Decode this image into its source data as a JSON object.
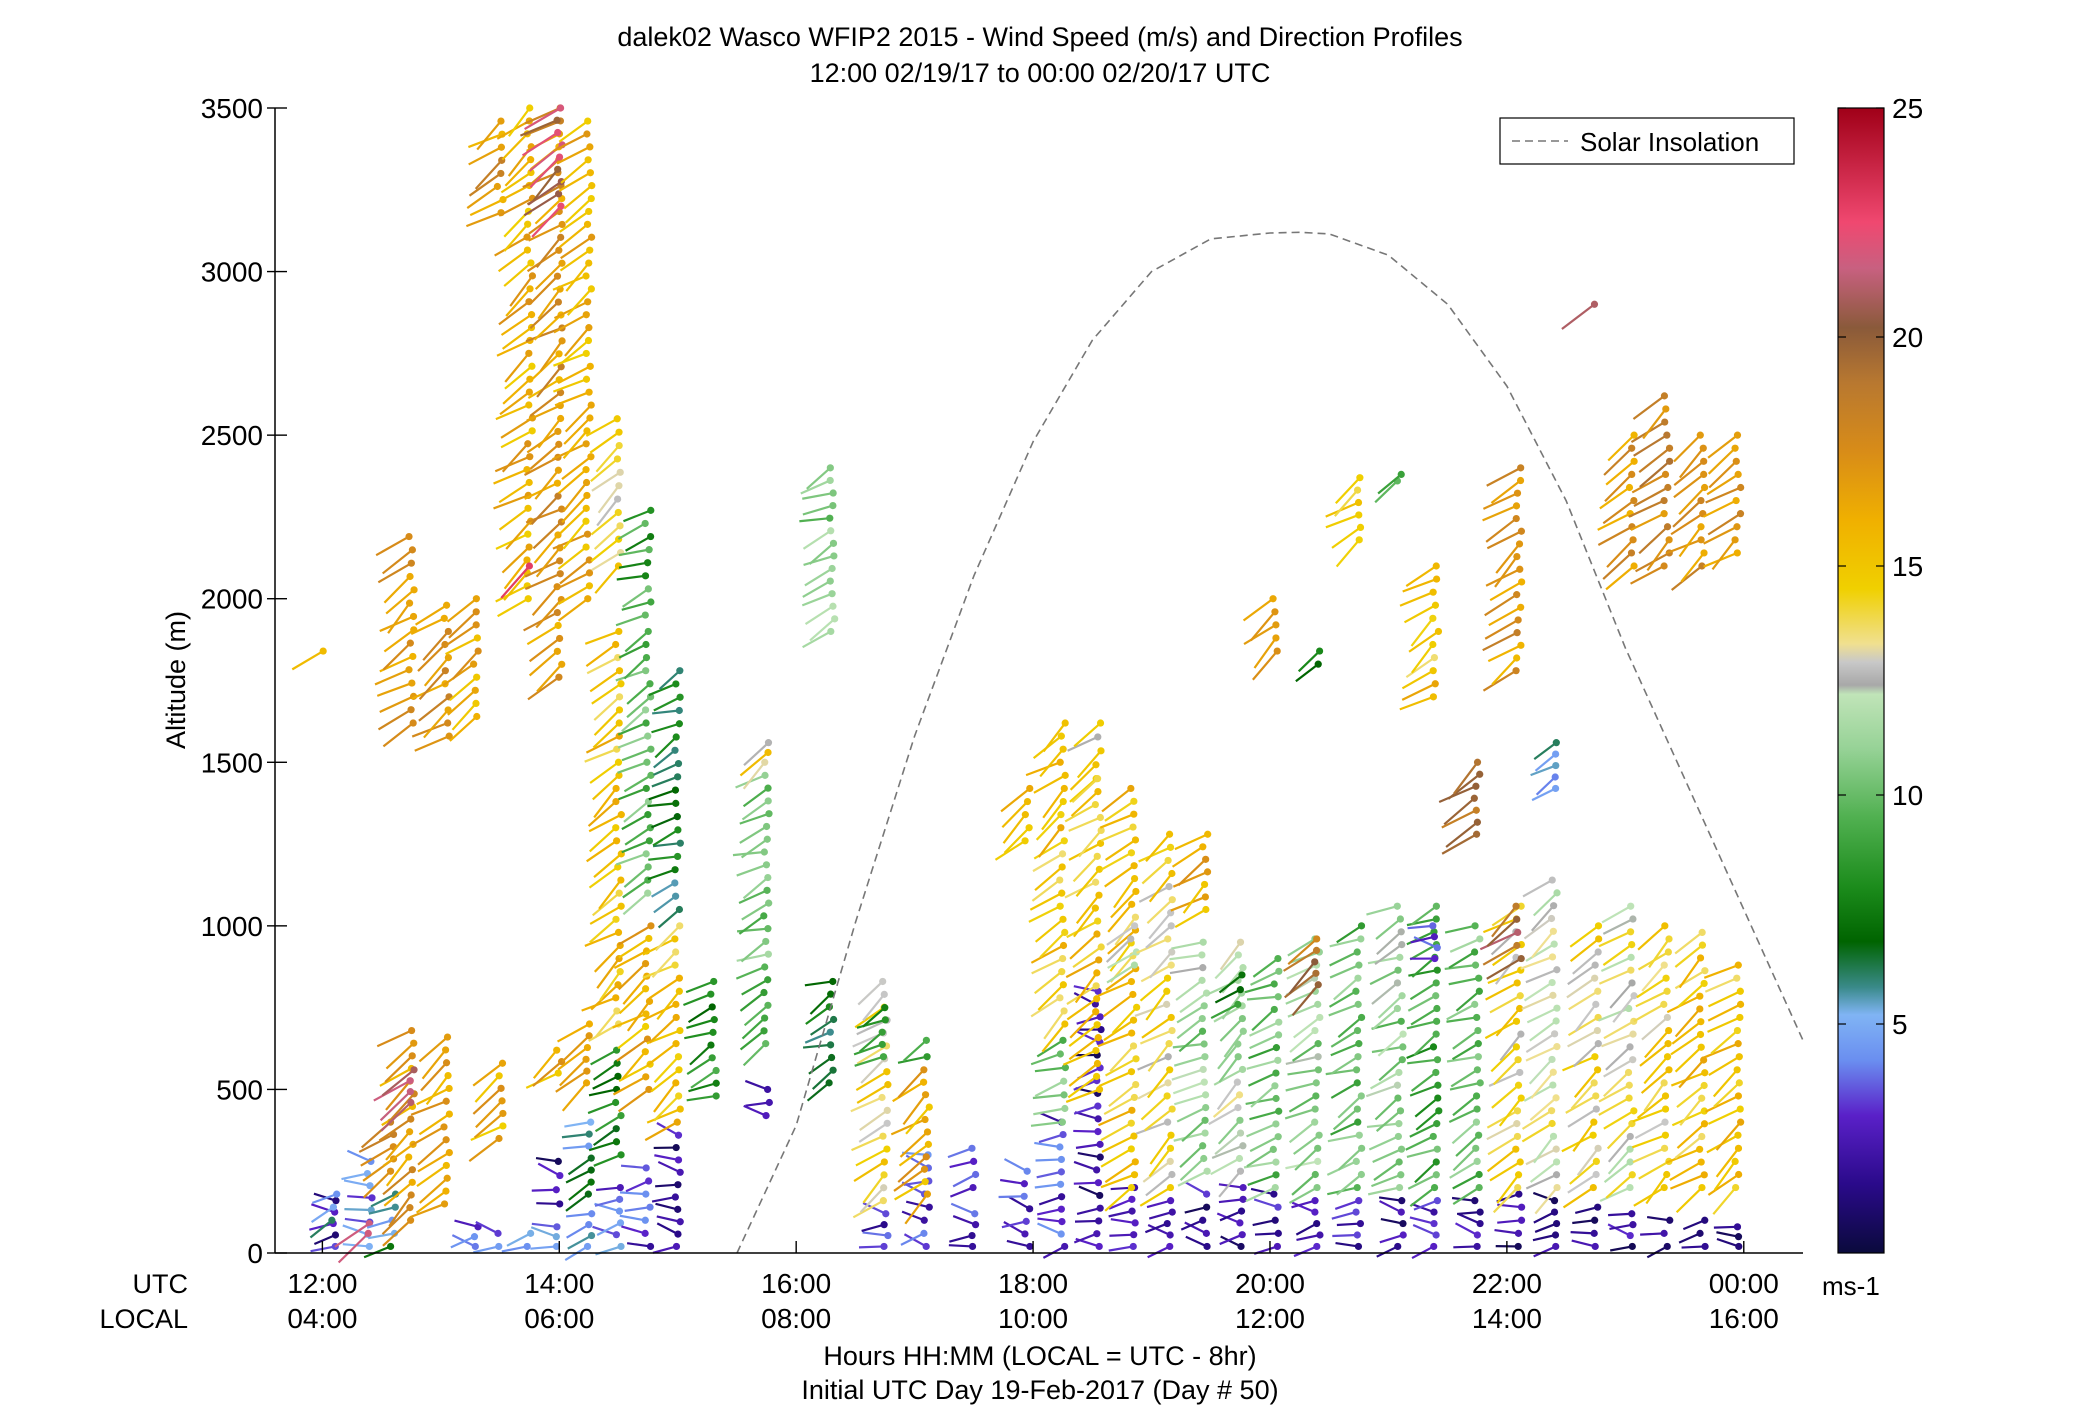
{
  "chart_data": {
    "type": "scatter",
    "title": "dalek02 Wasco WFIP2 2015 - Wind Speed (m/s) and Direction Profiles",
    "subtitle": "12:00 02/19/17 to 00:00 02/20/17  UTC",
    "ylabel": "Altitude (m)",
    "xlabel": "Hours HH:MM  (LOCAL = UTC - 8hr)",
    "xlabel2": "Initial UTC Day 19-Feb-2017 (Day # 50)",
    "row_label_utc": "UTC",
    "row_label_local": "LOCAL",
    "xlim_hours": [
      11.6,
      24.5
    ],
    "ylim": [
      0,
      3500
    ],
    "yticks": [
      0,
      500,
      1000,
      1500,
      2000,
      2500,
      3000,
      3500
    ],
    "xticks_hours": [
      12,
      14,
      16,
      18,
      20,
      22,
      24
    ],
    "xtick_labels_utc": [
      "12:00",
      "14:00",
      "16:00",
      "18:00",
      "20:00",
      "22:00",
      "00:00"
    ],
    "xtick_labels_local": [
      "04:00",
      "06:00",
      "08:00",
      "10:00",
      "12:00",
      "14:00",
      "16:00"
    ],
    "legend": {
      "label": "Solar Insolation",
      "position": "top-right",
      "style": "dashed gray line"
    },
    "colorbar": {
      "label": "ms-1",
      "range": [
        0,
        25
      ],
      "ticks": [
        5,
        10,
        15,
        20,
        25
      ],
      "stops": [
        {
          "v": 0,
          "c": "#0a0a3c"
        },
        {
          "v": 1.5,
          "c": "#2a0a8a"
        },
        {
          "v": 3,
          "c": "#5a20c8"
        },
        {
          "v": 4.2,
          "c": "#6a8ef0"
        },
        {
          "v": 5.2,
          "c": "#80b4f4"
        },
        {
          "v": 5.8,
          "c": "#3a8a8a"
        },
        {
          "v": 6.8,
          "c": "#006400"
        },
        {
          "v": 8,
          "c": "#1c8c1c"
        },
        {
          "v": 9.5,
          "c": "#50b050"
        },
        {
          "v": 11,
          "c": "#96d296"
        },
        {
          "v": 12.2,
          "c": "#c0e4b8"
        },
        {
          "v": 12.4,
          "c": "#a8a8a8"
        },
        {
          "v": 12.9,
          "c": "#c8c8c8"
        },
        {
          "v": 13.3,
          "c": "#f0e090"
        },
        {
          "v": 14.5,
          "c": "#f0d000"
        },
        {
          "v": 16,
          "c": "#f0b000"
        },
        {
          "v": 17.5,
          "c": "#d88c18"
        },
        {
          "v": 19,
          "c": "#b87830"
        },
        {
          "v": 20.2,
          "c": "#8a5a3a"
        },
        {
          "v": 21.5,
          "c": "#c86080"
        },
        {
          "v": 22.5,
          "c": "#f04870"
        },
        {
          "v": 25,
          "c": "#a00018"
        }
      ]
    },
    "solar_insolation_curve": {
      "hour": [
        15.5,
        16,
        16.5,
        17,
        17.5,
        18,
        18.5,
        19,
        19.5,
        20,
        20.25,
        20.5,
        21,
        21.5,
        22,
        22.5,
        23,
        23.5,
        24,
        24.5
      ],
      "altitude": [
        0,
        390,
        1010,
        1580,
        2070,
        2480,
        2790,
        3000,
        3100,
        3118,
        3120,
        3115,
        3050,
        2900,
        2650,
        2300,
        1850,
        1450,
        1050,
        650
      ]
    },
    "profiles": [
      {
        "hour": 12.0,
        "bands": [
          [
            1840,
            1840,
            15
          ]
        ]
      },
      {
        "hour": 12.1,
        "bands": [
          [
            20,
            160,
            2
          ],
          [
            100,
            180,
            5
          ]
        ]
      },
      {
        "hour": 12.4,
        "bands": [
          [
            20,
            280,
            4
          ],
          [
            60,
            90,
            22
          ]
        ]
      },
      {
        "hour": 12.6,
        "bands": [
          [
            20,
            180,
            6
          ],
          [
            250,
            400,
            17
          ]
        ]
      },
      {
        "hour": 12.75,
        "bands": [
          [
            100,
            680,
            17
          ],
          [
            460,
            560,
            22
          ],
          [
            1620,
            2190,
            17
          ]
        ]
      },
      {
        "hour": 13.05,
        "bands": [
          [
            150,
            660,
            16
          ],
          [
            1580,
            1980,
            17
          ]
        ]
      },
      {
        "hour": 13.3,
        "bands": [
          [
            20,
            80,
            4
          ],
          [
            1640,
            2000,
            16
          ]
        ]
      },
      {
        "hour": 13.5,
        "bands": [
          [
            20,
            60,
            4
          ],
          [
            350,
            580,
            16
          ],
          [
            3180,
            3460,
            17
          ]
        ]
      },
      {
        "hour": 13.75,
        "bands": [
          [
            20,
            60,
            5
          ],
          [
            2000,
            3500,
            16
          ],
          [
            2100,
            2100,
            22
          ]
        ]
      },
      {
        "hour": 14.0,
        "bands": [
          [
            20,
            80,
            4
          ],
          [
            150,
            280,
            2
          ],
          [
            550,
            620,
            16
          ],
          [
            1760,
            3500,
            17
          ],
          [
            3200,
            3500,
            21
          ]
        ]
      },
      {
        "hour": 14.25,
        "bands": [
          [
            20,
            120,
            5
          ],
          [
            180,
            400,
            6
          ],
          [
            520,
            700,
            17
          ],
          [
            2000,
            3460,
            16
          ]
        ]
      },
      {
        "hour": 14.5,
        "bands": [
          [
            20,
            200,
            4
          ],
          [
            300,
            620,
            8
          ],
          [
            700,
            1900,
            15
          ],
          [
            2100,
            2550,
            14
          ]
        ]
      },
      {
        "hour": 14.75,
        "bands": [
          [
            20,
            260,
            3
          ],
          [
            500,
            1000,
            16
          ],
          [
            1100,
            1900,
            10
          ],
          [
            1950,
            2270,
            9
          ]
        ]
      },
      {
        "hour": 15.0,
        "bands": [
          [
            20,
            360,
            2
          ],
          [
            400,
            1000,
            15
          ],
          [
            1050,
            1780,
            7
          ]
        ]
      },
      {
        "hour": 15.3,
        "bands": [
          [
            480,
            830,
            8
          ]
        ]
      },
      {
        "hour": 15.75,
        "bands": [
          [
            420,
            500,
            3
          ],
          [
            640,
            1460,
            10
          ],
          [
            1500,
            1560,
            14
          ]
        ]
      },
      {
        "hour": 16.3,
        "bands": [
          [
            520,
            830,
            7
          ],
          [
            1900,
            2400,
            11
          ]
        ]
      },
      {
        "hour": 16.75,
        "bands": [
          [
            20,
            120,
            3
          ],
          [
            160,
            830,
            14
          ],
          [
            600,
            750,
            8
          ]
        ]
      },
      {
        "hour": 17.1,
        "bands": [
          [
            20,
            300,
            3
          ],
          [
            180,
            560,
            16
          ],
          [
            600,
            650,
            8
          ]
        ]
      },
      {
        "hour": 17.5,
        "bands": [
          [
            20,
            120,
            3
          ],
          [
            200,
            320,
            4
          ]
        ]
      },
      {
        "hour": 17.95,
        "bands": [
          [
            20,
            250,
            3
          ],
          [
            1260,
            1420,
            15
          ]
        ]
      },
      {
        "hour": 18.25,
        "bands": [
          [
            20,
            400,
            3
          ],
          [
            400,
            650,
            10
          ],
          [
            700,
            1620,
            15
          ]
        ]
      },
      {
        "hour": 18.55,
        "bands": [
          [
            20,
            800,
            2
          ],
          [
            500,
            1450,
            15
          ],
          [
            1450,
            1620,
            14
          ]
        ]
      },
      {
        "hour": 18.85,
        "bands": [
          [
            20,
            200,
            2
          ],
          [
            200,
            1420,
            15
          ],
          [
            880,
            1000,
            13
          ]
        ]
      },
      {
        "hour": 19.15,
        "bands": [
          [
            20,
            160,
            2
          ],
          [
            200,
            1280,
            14
          ]
        ]
      },
      {
        "hour": 19.45,
        "bands": [
          [
            20,
            180,
            2
          ],
          [
            250,
            950,
            11
          ],
          [
            1050,
            1280,
            16
          ]
        ]
      },
      {
        "hour": 19.75,
        "bands": [
          [
            20,
            200,
            2
          ],
          [
            250,
            950,
            12
          ],
          [
            760,
            850,
            8
          ]
        ]
      },
      {
        "hour": 20.05,
        "bands": [
          [
            20,
            180,
            2
          ],
          [
            200,
            900,
            10
          ],
          [
            1840,
            2000,
            16
          ]
        ]
      },
      {
        "hour": 20.4,
        "bands": [
          [
            20,
            160,
            2
          ],
          [
            200,
            960,
            11
          ],
          [
            820,
            960,
            19
          ],
          [
            1800,
            1840,
            8
          ]
        ]
      },
      {
        "hour": 20.75,
        "bands": [
          [
            20,
            160,
            2
          ],
          [
            200,
            1000,
            10
          ],
          [
            2180,
            2370,
            14
          ]
        ]
      },
      {
        "hour": 21.1,
        "bands": [
          [
            20,
            160,
            2
          ],
          [
            200,
            1060,
            11
          ],
          [
            2360,
            2380,
            10
          ]
        ]
      },
      {
        "hour": 21.4,
        "bands": [
          [
            20,
            160,
            2
          ],
          [
            200,
            1060,
            9
          ],
          [
            1700,
            2100,
            15
          ],
          [
            900,
            1000,
            4
          ]
        ]
      },
      {
        "hour": 21.75,
        "bands": [
          [
            20,
            160,
            2
          ],
          [
            200,
            1000,
            10
          ],
          [
            1280,
            1500,
            19
          ]
        ]
      },
      {
        "hour": 22.1,
        "bands": [
          [
            20,
            180,
            2
          ],
          [
            200,
            1060,
            14
          ],
          [
            900,
            1060,
            20
          ],
          [
            1780,
            2400,
            17
          ]
        ]
      },
      {
        "hour": 22.4,
        "bands": [
          [
            20,
            160,
            2
          ],
          [
            200,
            1140,
            13
          ],
          [
            1420,
            1560,
            5
          ]
        ]
      },
      {
        "hour": 22.75,
        "bands": [
          [
            20,
            140,
            2
          ],
          [
            200,
            1000,
            14
          ],
          [
            2900,
            2900,
            20
          ]
        ]
      },
      {
        "hour": 23.05,
        "bands": [
          [
            20,
            120,
            2
          ],
          [
            200,
            1060,
            13
          ],
          [
            2100,
            2500,
            17
          ]
        ]
      },
      {
        "hour": 23.35,
        "bands": [
          [
            20,
            100,
            2
          ],
          [
            200,
            1000,
            14
          ],
          [
            2100,
            2620,
            18
          ]
        ]
      },
      {
        "hour": 23.65,
        "bands": [
          [
            20,
            100,
            2
          ],
          [
            200,
            980,
            15
          ],
          [
            2100,
            2500,
            17
          ]
        ]
      },
      {
        "hour": 23.95,
        "bands": [
          [
            20,
            80,
            2
          ],
          [
            200,
            880,
            15
          ],
          [
            2140,
            2500,
            17
          ]
        ]
      }
    ]
  }
}
